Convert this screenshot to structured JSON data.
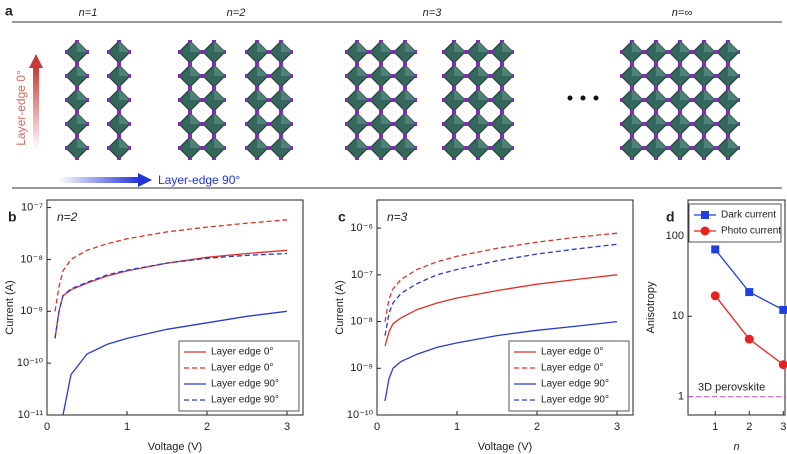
{
  "figure_a": {
    "label": "a",
    "columns": [
      "n=1",
      "n=2",
      "n=3",
      "n=∞"
    ],
    "arrows": [
      "Layer-edge 0°",
      "Layer-edge 90°"
    ]
  },
  "chart_data": [
    {
      "type": "line",
      "label": "b",
      "annotation": "n=2",
      "xlabel": "Voltage (V)",
      "ylabel": "Current (A)",
      "x": [
        0.1,
        0.15,
        0.2,
        0.3,
        0.5,
        0.75,
        1,
        1.5,
        2,
        2.5,
        3
      ],
      "xlim": [
        0,
        3.2
      ],
      "xticks": [
        0,
        1,
        2,
        3
      ],
      "ylim": [
        1e-11,
        1.4e-07
      ],
      "ylog": true,
      "yticks": [
        {
          "value": 1e-11,
          "label": "10⁻¹¹"
        },
        {
          "value": 1e-10,
          "label": "10⁻¹⁰"
        },
        {
          "value": 1e-09,
          "label": "10⁻⁹"
        },
        {
          "value": 1e-08,
          "label": "10⁻⁸"
        },
        {
          "value": 1e-07,
          "label": "10⁻⁷"
        }
      ],
      "legend": "lower right",
      "series": [
        {
          "name": "Layer edge 0°",
          "color": "#e0302a",
          "dash": false,
          "values": [
            3e-10,
            1e-09,
            2e-09,
            2.6e-09,
            3.5e-09,
            4.8e-09,
            6e-09,
            8.5e-09,
            1.1e-08,
            1.3e-08,
            1.5e-08
          ]
        },
        {
          "name": "Layer edge 0°",
          "color": "#e0302a",
          "dash": true,
          "values": [
            1e-09,
            3e-09,
            6e-09,
            1e-08,
            1.5e-08,
            2e-08,
            2.5e-08,
            3.4e-08,
            4.2e-08,
            5e-08,
            5.8e-08
          ]
        },
        {
          "name": "Layer edge 90°",
          "color": "#2b3bd0",
          "dash": false,
          "values": [
            null,
            null,
            1e-11,
            6e-11,
            1.5e-10,
            2.3e-10,
            3e-10,
            4.5e-10,
            6e-10,
            8e-10,
            1e-09
          ]
        },
        {
          "name": "Layer edge 90°",
          "color": "#2b3bd0",
          "dash": true,
          "values": [
            3e-10,
            1e-09,
            2e-09,
            2.7e-09,
            3.6e-09,
            5e-09,
            6.2e-09,
            8.5e-09,
            1.05e-08,
            1.2e-08,
            1.3e-08
          ]
        }
      ]
    },
    {
      "type": "line",
      "label": "c",
      "annotation": "n=3",
      "xlabel": "Voltage (V)",
      "ylabel": "Current (A)",
      "x": [
        0.1,
        0.15,
        0.2,
        0.3,
        0.5,
        0.75,
        1,
        1.5,
        2,
        2.5,
        3
      ],
      "xlim": [
        0,
        3.2
      ],
      "xticks": [
        0,
        1,
        2,
        3
      ],
      "ylim": [
        1e-10,
        4e-06
      ],
      "ylog": true,
      "yticks": [
        {
          "value": 1e-10,
          "label": "10⁻¹⁰"
        },
        {
          "value": 1e-09,
          "label": "10⁻⁹"
        },
        {
          "value": 1e-08,
          "label": "10⁻⁸"
        },
        {
          "value": 1e-07,
          "label": "10⁻⁷"
        },
        {
          "value": 1e-06,
          "label": "10⁻⁶"
        }
      ],
      "legend": "lower right",
      "series": [
        {
          "name": "Layer edge 0°",
          "color": "#e0302a",
          "dash": false,
          "values": [
            3e-09,
            6e-09,
            9e-09,
            1.2e-08,
            1.8e-08,
            2.5e-08,
            3.2e-08,
            4.6e-08,
            6.3e-08,
            8e-08,
            1e-07
          ]
        },
        {
          "name": "Layer edge 0°",
          "color": "#e0302a",
          "dash": true,
          "values": [
            1e-08,
            3e-08,
            5e-08,
            8e-08,
            1.3e-07,
            1.9e-07,
            2.5e-07,
            3.7e-07,
            5e-07,
            6.4e-07,
            7.8e-07
          ]
        },
        {
          "name": "Layer edge 90°",
          "color": "#2b3bd0",
          "dash": false,
          "values": [
            2e-10,
            6e-10,
            1e-09,
            1.4e-09,
            2e-09,
            2.8e-09,
            3.5e-09,
            5e-09,
            6.5e-09,
            8e-09,
            1e-08
          ]
        },
        {
          "name": "Layer edge 90°",
          "color": "#2b3bd0",
          "dash": true,
          "values": [
            5e-09,
            1.5e-08,
            2.5e-08,
            4e-08,
            6.5e-08,
            1e-07,
            1.3e-07,
            2e-07,
            2.8e-07,
            3.6e-07,
            4.5e-07
          ]
        }
      ]
    },
    {
      "type": "line",
      "label": "d",
      "xlabel": "n",
      "ylabel": "Anisotropy",
      "x": [
        1,
        2,
        3
      ],
      "xlim": [
        0.2,
        3.05
      ],
      "xticks": [
        1,
        2,
        3
      ],
      "ylim": [
        0.59,
        280
      ],
      "ylog": true,
      "yticks": [
        1,
        10,
        100
      ],
      "legend": "upper right",
      "reference_line": {
        "value": 1,
        "label": "3D perovskite",
        "color": "#d04fc8"
      },
      "series": [
        {
          "name": "Dark current",
          "color": "#1f3fe0",
          "marker": "square",
          "values": [
            68,
            20,
            12
          ]
        },
        {
          "name": "Photo current",
          "color": "#e8231f",
          "marker": "circle",
          "values": [
            18,
            5.2,
            2.5
          ]
        }
      ]
    }
  ]
}
